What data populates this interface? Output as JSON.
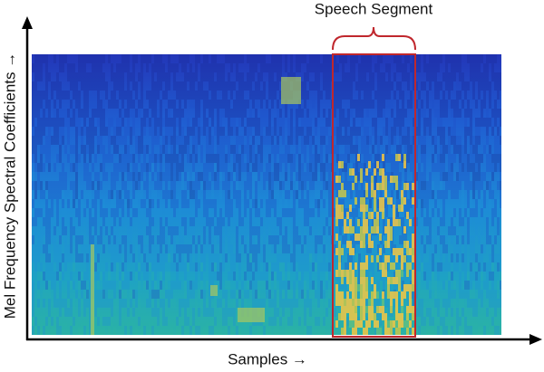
{
  "annotation": "Speech Segment",
  "y_axis_label": "Mel Frequency Spectral Coefficients →",
  "x_axis_label": "Samples →"
}
